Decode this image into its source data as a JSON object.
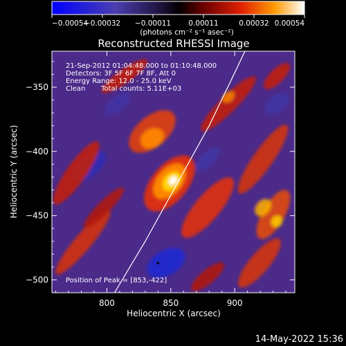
{
  "chart_data": {
    "type": "heatmap",
    "title": "Reconstructed RHESSI Image",
    "xlabel": "Heliocentric X (arcsec)",
    "ylabel": "Heliocentric Y (arcsec)",
    "xlim": [
      757,
      947
    ],
    "ylim": [
      -510,
      -322
    ],
    "xticks": [
      800,
      850,
      900
    ],
    "yticks": [
      -350,
      -400,
      -450,
      -500
    ],
    "xtick_labels": [
      "800",
      "850",
      "900"
    ],
    "ytick_labels": [
      "−350",
      "−400",
      "−450",
      "−500"
    ],
    "colorbar": {
      "range": [
        -0.00054,
        0.00054
      ],
      "tick_labels": [
        "−0.00054",
        "−0.00032",
        "−0.00011",
        "0.00011",
        "0.00032",
        "0.00054"
      ],
      "unit_label": "(photons cm⁻² s⁻¹ asec⁻²)"
    },
    "info": {
      "time": "21-Sep-2012 01:04:48.000 to 01:10:48.000",
      "detectors": "Detectors: 3F 5F 6F 7F 8F, Att 0",
      "energy": "Energy Range: 12.0 - 25.0 keV",
      "method": "Clean",
      "counts": "Total counts: 5.11E+03"
    },
    "peak": {
      "label": "Position of Peak = [853,-422]",
      "x": 853,
      "y": -422
    },
    "limb": [
      [
        806,
        -510
      ],
      [
        830,
        -470
      ],
      [
        855,
        -425
      ],
      [
        880,
        -380
      ],
      [
        897,
        -345
      ],
      [
        908,
        -322
      ]
    ],
    "footer": "14-May-2022 15:36"
  }
}
